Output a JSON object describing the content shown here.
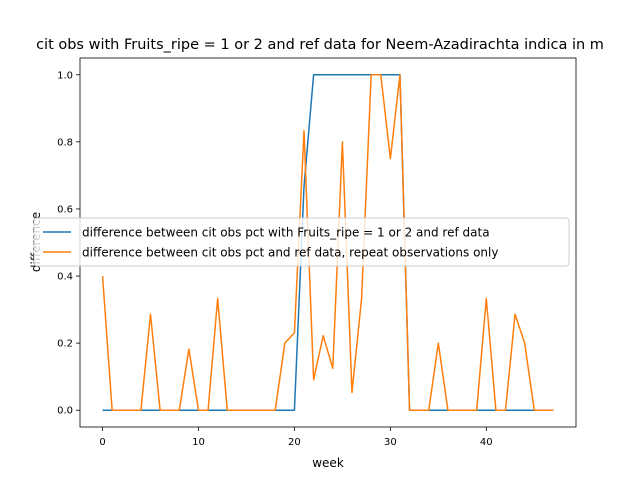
{
  "chart_data": {
    "type": "line",
    "title": "cit obs with Fruits_ripe = 1 or 2 and ref data for Neem-Azadirachta indica in m",
    "xlabel": "week",
    "ylabel": "difference",
    "xlim": [
      -2.35,
      49.35
    ],
    "ylim": [
      -0.05,
      1.05
    ],
    "xticks": [
      0,
      10,
      20,
      30,
      40
    ],
    "yticks": [
      0.0,
      0.2,
      0.4,
      0.6,
      0.8,
      1.0
    ],
    "xtick_labels": [
      "0",
      "10",
      "20",
      "30",
      "40"
    ],
    "ytick_labels": [
      "0.0",
      "0.2",
      "0.4",
      "0.6",
      "0.8",
      "1.0"
    ],
    "legend_position": "center-left",
    "grid": false,
    "series": [
      {
        "name": "difference between cit obs pct with Fruits_ripe = 1 or 2 and ref data",
        "color": "#1f77b4",
        "x": [
          0,
          1,
          2,
          3,
          4,
          5,
          6,
          7,
          8,
          9,
          10,
          11,
          12,
          13,
          14,
          15,
          16,
          17,
          18,
          19,
          20,
          21,
          22,
          23,
          24,
          25,
          26,
          27,
          28,
          29,
          30,
          31,
          32,
          33,
          34,
          35,
          36,
          37,
          38,
          39,
          40,
          41,
          42,
          43,
          44,
          45,
          46,
          47
        ],
        "y": [
          0,
          0,
          0,
          0,
          0,
          0,
          0,
          0,
          0,
          0,
          0,
          0,
          0,
          0,
          0,
          0,
          0,
          0,
          0,
          0,
          0,
          0.667,
          1,
          1,
          1,
          1,
          1,
          1,
          1,
          1,
          1,
          1,
          0,
          0,
          0,
          0,
          0,
          0,
          0,
          0,
          0,
          0,
          0,
          0,
          0,
          0,
          0,
          0
        ]
      },
      {
        "name": "difference between cit obs pct and ref data, repeat observations only",
        "color": "#ff7f0e",
        "x": [
          0,
          1,
          2,
          3,
          4,
          5,
          6,
          7,
          8,
          9,
          10,
          11,
          12,
          13,
          14,
          15,
          16,
          17,
          18,
          19,
          20,
          21,
          22,
          23,
          24,
          25,
          26,
          27,
          28,
          29,
          30,
          31,
          32,
          33,
          34,
          35,
          36,
          37,
          38,
          39,
          40,
          41,
          42,
          43,
          44,
          45,
          46,
          47
        ],
        "y": [
          0.4,
          0,
          0,
          0,
          0,
          0.286,
          0,
          0,
          0,
          0.182,
          0,
          0,
          0.333,
          0,
          0,
          0,
          0,
          0,
          0,
          0.2,
          0.231,
          0.833,
          0.091,
          0.222,
          0.125,
          0.8,
          0.053,
          0.333,
          1,
          1,
          0.75,
          1,
          0,
          0,
          0,
          0.2,
          0,
          0,
          0,
          0,
          0.333,
          0,
          0,
          0.286,
          0.2,
          0,
          0,
          0
        ]
      }
    ]
  }
}
